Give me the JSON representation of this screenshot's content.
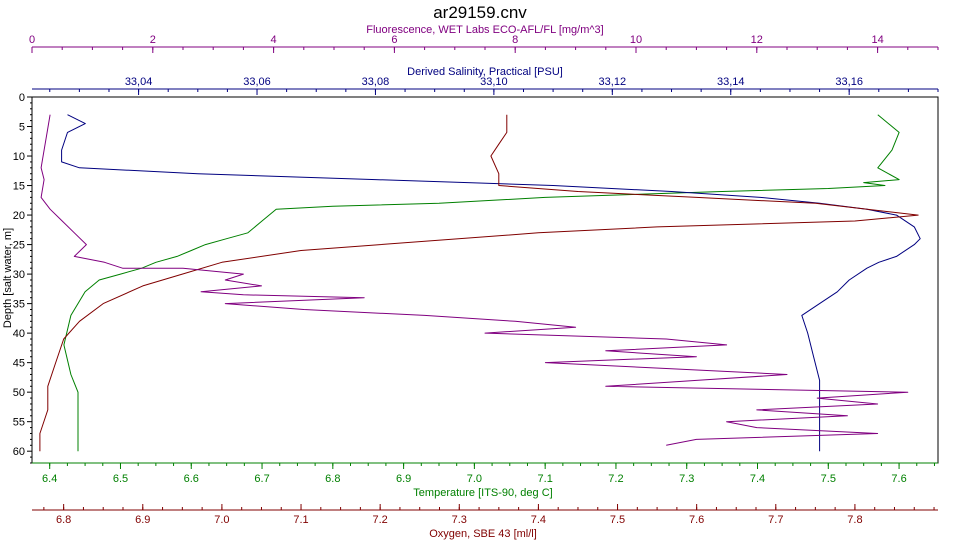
{
  "chart_data": {
    "type": "line",
    "title": "ar29159.cnv",
    "axes": {
      "fluorescence": {
        "label": "Fluorescence, WET Labs ECO-AFL/FL [mg/m^3]",
        "range": [
          0,
          15
        ],
        "ticks": [
          0,
          2,
          4,
          6,
          8,
          10,
          12,
          14
        ],
        "color": "#800080"
      },
      "salinity": {
        "label": "Derived Salinity, Practical [PSU]",
        "range": [
          33.022,
          33.175
        ],
        "ticks": [
          33.04,
          33.06,
          33.08,
          33.1,
          33.12,
          33.14,
          33.16
        ],
        "tick_labels": [
          "33,04",
          "33,06",
          "33,08",
          "33,10",
          "33,12",
          "33,14",
          "33,16"
        ],
        "color": "#000080"
      },
      "depth": {
        "label": "Depth [salt water, m]",
        "range": [
          0,
          62
        ],
        "ticks": [
          0,
          5,
          10,
          15,
          20,
          25,
          30,
          35,
          40,
          45,
          50,
          55,
          60
        ],
        "inverted": true
      },
      "temperature": {
        "label": "Temperature [ITS-90, deg C]",
        "range": [
          6.375,
          7.655
        ],
        "ticks": [
          6.4,
          6.5,
          6.6,
          6.7,
          6.8,
          6.9,
          7.0,
          7.1,
          7.2,
          7.3,
          7.4,
          7.5,
          7.6
        ],
        "color": "#008000"
      },
      "oxygen": {
        "label": "Oxygen, SBE 43 [ml/l]",
        "range": [
          6.76,
          7.905
        ],
        "ticks": [
          6.8,
          6.9,
          7.0,
          7.1,
          7.2,
          7.3,
          7.4,
          7.5,
          7.6,
          7.7,
          7.8
        ],
        "color": "#800000"
      }
    },
    "grid": false,
    "series": [
      {
        "name": "Temperature",
        "axis": "temperature",
        "color": "#008000",
        "points": [
          [
            7.57,
            3
          ],
          [
            7.6,
            6
          ],
          [
            7.59,
            9
          ],
          [
            7.57,
            12
          ],
          [
            7.6,
            14
          ],
          [
            7.55,
            14.5
          ],
          [
            7.58,
            15
          ],
          [
            7.5,
            15.5
          ],
          [
            7.35,
            16
          ],
          [
            7.1,
            17
          ],
          [
            6.95,
            18
          ],
          [
            6.8,
            18.5
          ],
          [
            6.72,
            19
          ],
          [
            6.7,
            21
          ],
          [
            6.68,
            23
          ],
          [
            6.65,
            24
          ],
          [
            6.62,
            25
          ],
          [
            6.6,
            26
          ],
          [
            6.58,
            27
          ],
          [
            6.55,
            28
          ],
          [
            6.53,
            29
          ],
          [
            6.5,
            30
          ],
          [
            6.47,
            31
          ],
          [
            6.45,
            33
          ],
          [
            6.43,
            37
          ],
          [
            6.42,
            42
          ],
          [
            6.43,
            47
          ],
          [
            6.44,
            50
          ],
          [
            6.44,
            55
          ],
          [
            6.44,
            60
          ]
        ]
      },
      {
        "name": "Salinity",
        "axis": "salinity",
        "color": "#000080",
        "points": [
          [
            33.028,
            3
          ],
          [
            33.031,
            4.5
          ],
          [
            33.028,
            6
          ],
          [
            33.027,
            9
          ],
          [
            33.027,
            11
          ],
          [
            33.03,
            12
          ],
          [
            33.05,
            13
          ],
          [
            33.08,
            14
          ],
          [
            33.11,
            15
          ],
          [
            33.13,
            16
          ],
          [
            33.145,
            17
          ],
          [
            33.155,
            18
          ],
          [
            33.163,
            19
          ],
          [
            33.168,
            20
          ],
          [
            33.171,
            22
          ],
          [
            33.172,
            24
          ],
          [
            33.171,
            25
          ],
          [
            33.168,
            27
          ],
          [
            33.165,
            28
          ],
          [
            33.163,
            29
          ],
          [
            33.16,
            31
          ],
          [
            33.158,
            33
          ],
          [
            33.155,
            35
          ],
          [
            33.152,
            37
          ],
          [
            33.153,
            40
          ],
          [
            33.154,
            44
          ],
          [
            33.155,
            48
          ],
          [
            33.155,
            52
          ],
          [
            33.155,
            56
          ],
          [
            33.155,
            60
          ]
        ]
      },
      {
        "name": "Oxygen",
        "axis": "oxygen",
        "color": "#800000",
        "points": [
          [
            7.36,
            3
          ],
          [
            7.36,
            6
          ],
          [
            7.35,
            8
          ],
          [
            7.34,
            10
          ],
          [
            7.35,
            13
          ],
          [
            7.35,
            15
          ],
          [
            7.45,
            16
          ],
          [
            7.6,
            17
          ],
          [
            7.75,
            18
          ],
          [
            7.88,
            20
          ],
          [
            7.8,
            21
          ],
          [
            7.55,
            22
          ],
          [
            7.4,
            23
          ],
          [
            7.2,
            25
          ],
          [
            7.1,
            26
          ],
          [
            7.0,
            28
          ],
          [
            6.95,
            30
          ],
          [
            6.9,
            32
          ],
          [
            6.85,
            35
          ],
          [
            6.82,
            38
          ],
          [
            6.8,
            41
          ],
          [
            6.79,
            45
          ],
          [
            6.78,
            49
          ],
          [
            6.78,
            53
          ],
          [
            6.77,
            57
          ],
          [
            6.77,
            60
          ]
        ]
      },
      {
        "name": "Fluorescence",
        "axis": "fluorescence",
        "color": "#800080",
        "points": [
          [
            0.3,
            3
          ],
          [
            0.25,
            6
          ],
          [
            0.2,
            9
          ],
          [
            0.15,
            12
          ],
          [
            0.2,
            14
          ],
          [
            0.15,
            17
          ],
          [
            0.3,
            19
          ],
          [
            0.5,
            21
          ],
          [
            0.7,
            23
          ],
          [
            0.9,
            25
          ],
          [
            0.7,
            27
          ],
          [
            1.2,
            28
          ],
          [
            1.5,
            29
          ],
          [
            2.5,
            29
          ],
          [
            3.5,
            30
          ],
          [
            3.2,
            31
          ],
          [
            3.8,
            32
          ],
          [
            2.8,
            33
          ],
          [
            3.5,
            33.5
          ],
          [
            5.5,
            34
          ],
          [
            3.2,
            35
          ],
          [
            4.5,
            36
          ],
          [
            6.5,
            37
          ],
          [
            8.0,
            38
          ],
          [
            9.0,
            39
          ],
          [
            7.5,
            40
          ],
          [
            10.5,
            41
          ],
          [
            11.5,
            42
          ],
          [
            9.5,
            43
          ],
          [
            11.0,
            44
          ],
          [
            8.5,
            45
          ],
          [
            10.5,
            46
          ],
          [
            12.5,
            47
          ],
          [
            11.0,
            48
          ],
          [
            9.5,
            49
          ],
          [
            14.5,
            50
          ],
          [
            13.0,
            51
          ],
          [
            14.0,
            52
          ],
          [
            12.0,
            53
          ],
          [
            13.5,
            54
          ],
          [
            11.5,
            55
          ],
          [
            12.0,
            56
          ],
          [
            14.0,
            57
          ],
          [
            11.0,
            58
          ],
          [
            10.5,
            59
          ]
        ]
      }
    ]
  }
}
